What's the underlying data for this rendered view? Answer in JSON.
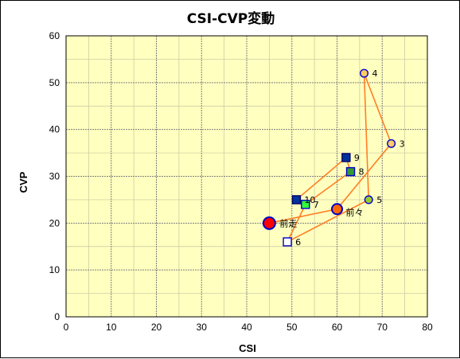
{
  "chart_data": {
    "type": "scatter",
    "title": "CSI-CVP変動",
    "xlabel": "CSI",
    "ylabel": "CVP",
    "xlim": [
      0,
      80
    ],
    "ylim": [
      0,
      60
    ],
    "xticks": [
      0,
      10,
      20,
      30,
      40,
      50,
      60,
      70,
      80
    ],
    "yticks": [
      0,
      10,
      20,
      30,
      40,
      50,
      60
    ],
    "grid": true,
    "connecting_line_color": "#ff7f27",
    "plot_background": "#ffffc0",
    "points": [
      {
        "label": "前走",
        "x": 45,
        "y": 20,
        "marker": "circle",
        "fill": "#ff0000",
        "stroke": "#0000cc"
      },
      {
        "label": "前々",
        "x": 60,
        "y": 23,
        "marker": "circle",
        "fill": "#ff6600",
        "stroke": "#0000cc"
      },
      {
        "label": "3",
        "x": 72,
        "y": 37,
        "marker": "circle",
        "fill": "#ffcc66",
        "stroke": "#0000cc"
      },
      {
        "label": "4",
        "x": 66,
        "y": 52,
        "marker": "circle",
        "fill": "#ffcc66",
        "stroke": "#0000cc"
      },
      {
        "label": "5",
        "x": 67,
        "y": 25,
        "marker": "circle",
        "fill": "#99cc33",
        "stroke": "#0000cc"
      },
      {
        "label": "6",
        "x": 49,
        "y": 16,
        "marker": "square",
        "fill": "#ffffff",
        "stroke": "#0000cc"
      },
      {
        "label": "7",
        "x": 53,
        "y": 24,
        "marker": "square",
        "fill": "#33ff33",
        "stroke": "#0000cc"
      },
      {
        "label": "8",
        "x": 63,
        "y": 31,
        "marker": "square",
        "fill": "#339933",
        "stroke": "#0000cc"
      },
      {
        "label": "9",
        "x": 62,
        "y": 34,
        "marker": "square",
        "fill": "#003399",
        "stroke": "#000066"
      },
      {
        "label": "10",
        "x": 51,
        "y": 25,
        "marker": "square",
        "fill": "#003399",
        "stroke": "#000066"
      }
    ]
  }
}
